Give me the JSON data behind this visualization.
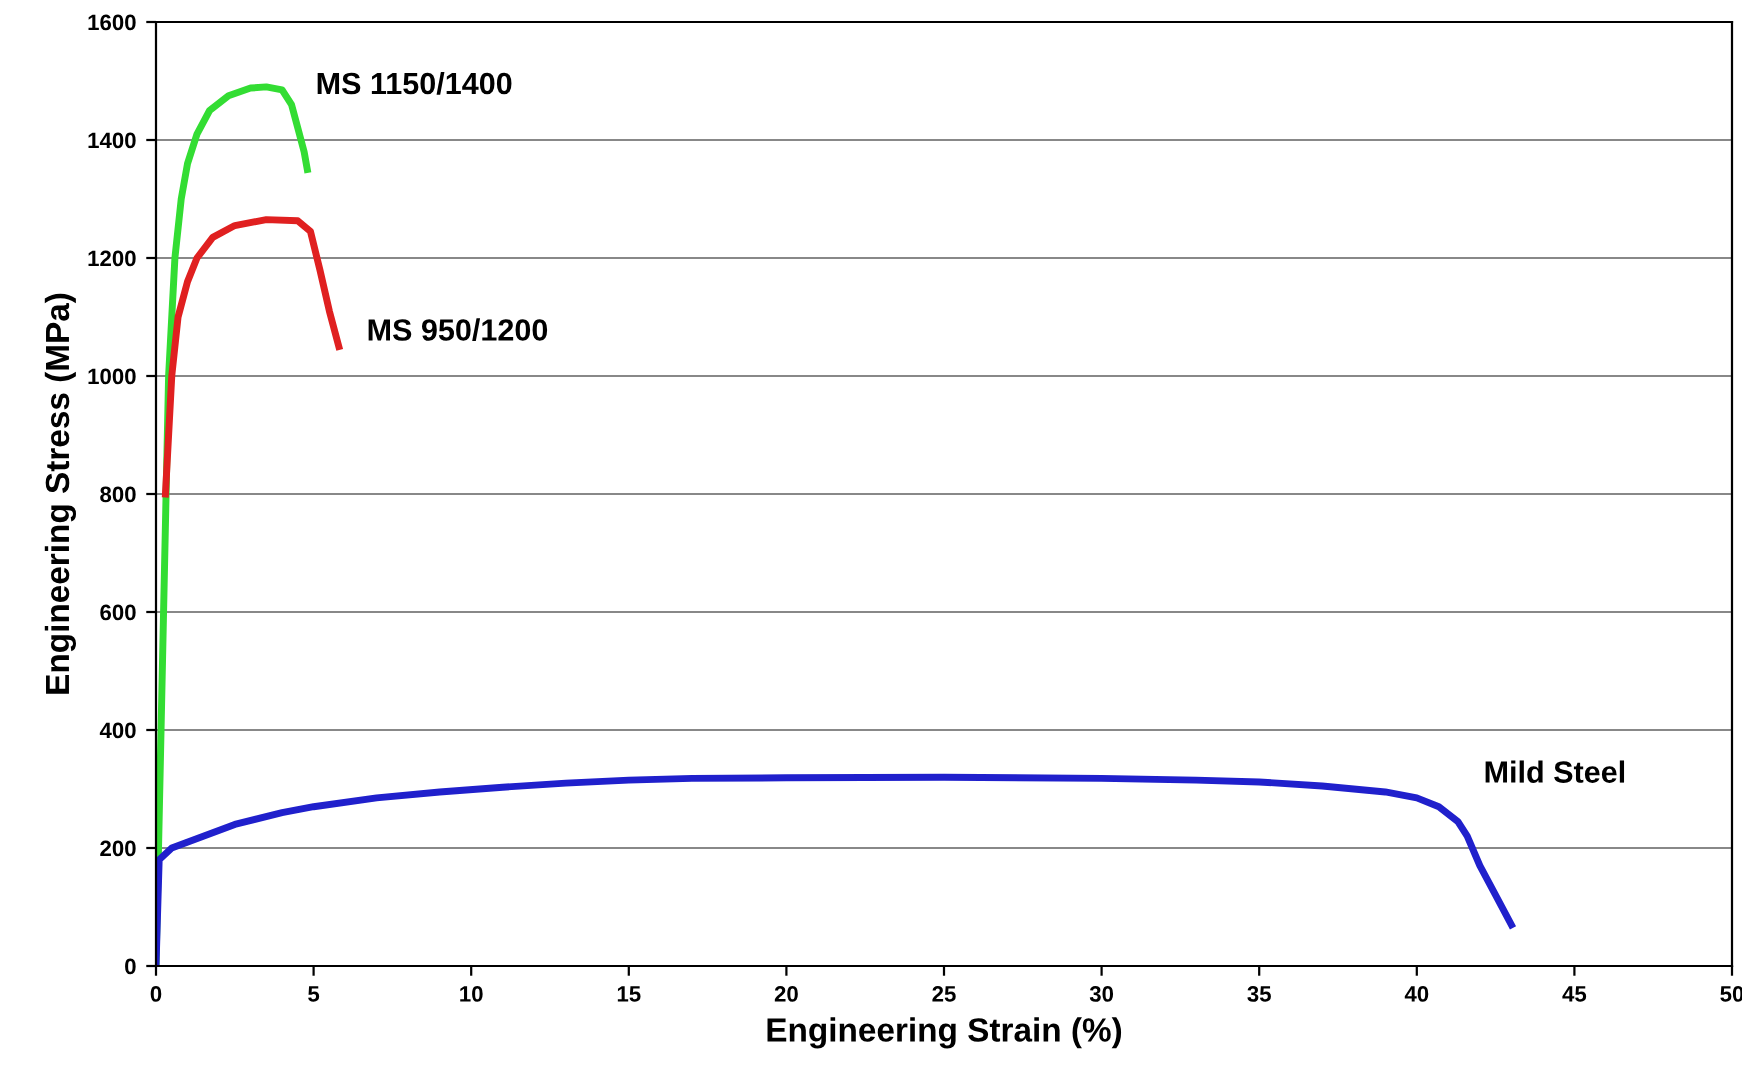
{
  "chart_data": {
    "type": "line",
    "xlabel": "Engineering Strain (%)",
    "ylabel": "Engineering Stress (MPa)",
    "xlim": [
      0,
      50
    ],
    "xticks": [
      0,
      5,
      10,
      15,
      20,
      25,
      30,
      35,
      40,
      45,
      50
    ],
    "ylim": [
      0,
      1600
    ],
    "yticks": [
      0,
      200,
      400,
      600,
      800,
      1000,
      1200,
      1400,
      1600
    ],
    "grid": "y",
    "marker": "none",
    "line_style": "solid",
    "series": [
      {
        "name": "MS 1150/1400",
        "color": "#33dd33",
        "x": [
          0,
          0.2,
          0.4,
          0.6,
          0.8,
          1.0,
          1.3,
          1.7,
          2.3,
          3.0,
          3.5,
          4.0,
          4.3,
          4.5,
          4.7,
          4.8
        ],
        "values": [
          0,
          500,
          1000,
          1200,
          1300,
          1360,
          1410,
          1450,
          1475,
          1488,
          1490,
          1485,
          1460,
          1420,
          1380,
          1350
        ]
      },
      {
        "name": "MS 950/1200",
        "color": "#e02020",
        "x": [
          0.3,
          0.5,
          0.7,
          1.0,
          1.3,
          1.8,
          2.5,
          3.5,
          4.5,
          4.9,
          5.2,
          5.5,
          5.8
        ],
        "values": [
          800,
          1000,
          1100,
          1160,
          1200,
          1235,
          1255,
          1265,
          1263,
          1245,
          1180,
          1110,
          1050
        ]
      },
      {
        "name": "Mild Steel",
        "color": "#2020cc",
        "x": [
          0,
          0.1,
          0.5,
          1.5,
          2.5,
          4,
          5,
          7,
          9,
          11,
          13,
          15,
          17,
          20,
          25,
          30,
          33,
          35,
          37,
          39,
          40,
          40.7,
          41.3,
          41.6,
          42,
          42.5,
          43
        ],
        "values": [
          0,
          180,
          200,
          220,
          240,
          260,
          270,
          285,
          295,
          303,
          310,
          315,
          318,
          319,
          320,
          318,
          315,
          312,
          305,
          295,
          285,
          270,
          245,
          220,
          170,
          120,
          70
        ]
      }
    ]
  }
}
